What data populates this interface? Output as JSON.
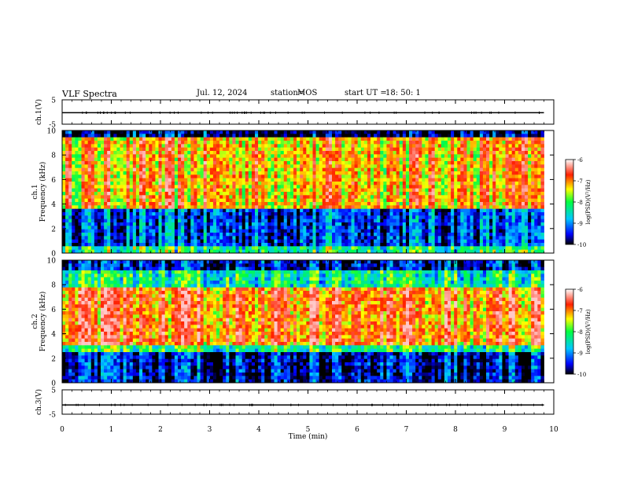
{
  "header": {
    "title": "VLF Spectra",
    "date": "Jul. 12, 2024",
    "station_label": "station=",
    "station": "MOS",
    "start_label": "start UT =",
    "start_time": "18: 50: 1"
  },
  "chart_data": [
    {
      "type": "line",
      "panel": "ch1-voltage",
      "ylabel": "ch.1(V)",
      "ylim": [
        -5,
        5
      ],
      "yticks": [
        5,
        -5
      ],
      "xlim": [
        0,
        10
      ],
      "level": -0.3,
      "series": [
        {
          "x": [
            0,
            9.8
          ],
          "y": [
            -0.3,
            -0.3
          ]
        }
      ]
    },
    {
      "type": "heatmap",
      "panel": "ch1-spectrogram",
      "ylabel_line1": "ch.1",
      "ylabel_line2": "Frequency (kHz)",
      "ylim": [
        0,
        10
      ],
      "yticks": [
        0,
        2,
        4,
        6,
        8,
        10
      ],
      "xlim": [
        0,
        10
      ],
      "data_xmax": 9.8,
      "colorbar": {
        "label": "log(PSD)(V²/Hz)",
        "range": [
          -10,
          -6
        ],
        "ticks": [
          -6,
          -7,
          -8,
          -9,
          -10
        ]
      }
    },
    {
      "type": "heatmap",
      "panel": "ch2-spectrogram",
      "ylabel_line1": "ch.2",
      "ylabel_line2": "Frequency (kHz)",
      "ylim": [
        0,
        10
      ],
      "yticks": [
        0,
        2,
        4,
        6,
        8,
        10
      ],
      "xlim": [
        0,
        10
      ],
      "data_xmax": 9.8,
      "colorbar": {
        "label": "log(PSD)(V²/Hz)",
        "range": [
          -10,
          -6
        ],
        "ticks": [
          -6,
          -7,
          -8,
          -9,
          -10
        ]
      }
    },
    {
      "type": "line",
      "panel": "ch3-voltage",
      "ylabel": "ch.3(V)",
      "ylim": [
        -5,
        5
      ],
      "yticks": [
        5,
        -5
      ],
      "xlim": [
        0,
        10
      ],
      "level": -1.2,
      "series": [
        {
          "x": [
            0,
            9.8
          ],
          "y": [
            -1.2,
            -1.2
          ]
        }
      ]
    }
  ],
  "xaxis": {
    "label": "Time (min)",
    "ticks": [
      0,
      1,
      2,
      3,
      4,
      5,
      6,
      7,
      8,
      9,
      10
    ]
  }
}
